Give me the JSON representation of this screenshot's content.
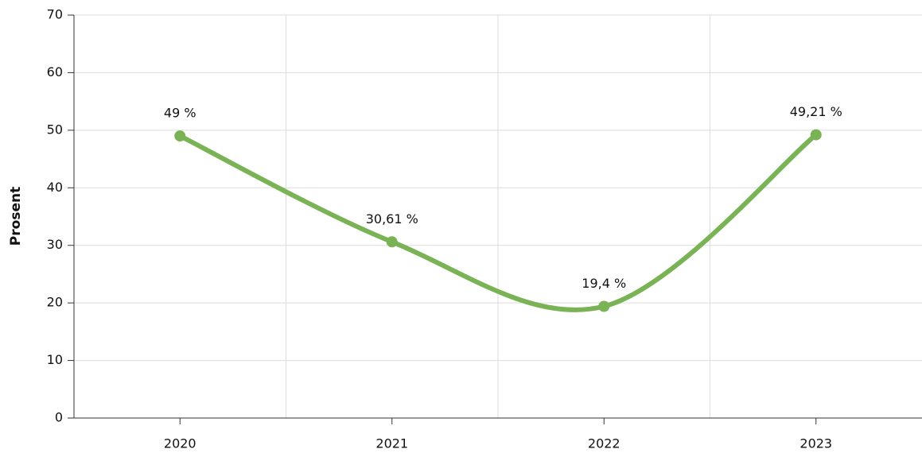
{
  "chart_data": {
    "type": "line",
    "y_label": "Prosent",
    "categories": [
      "2020",
      "2021",
      "2022",
      "2023"
    ],
    "values": [
      49,
      30.61,
      19.4,
      49.21
    ],
    "value_labels": [
      "49 %",
      "30,61 %",
      "19,4 %",
      "49,21 %"
    ],
    "color": "#7ab356",
    "smooth": true,
    "ylim": [
      0,
      70
    ],
    "yticks": [
      0,
      10,
      20,
      30,
      40,
      50,
      60,
      70
    ],
    "grid": true
  }
}
